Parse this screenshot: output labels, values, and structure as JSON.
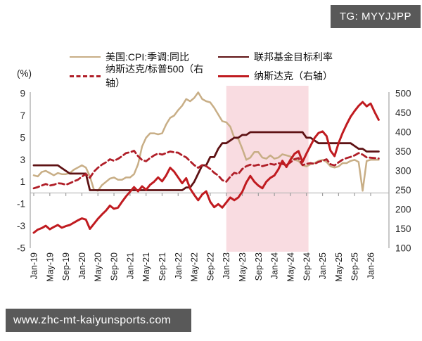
{
  "badge": {
    "text": "TG: MYYJJPP"
  },
  "watermark": {
    "text": "www.zhc-mt-kaiyunsports.com"
  },
  "chart_data": {
    "type": "line",
    "title": "",
    "left_axis": {
      "label": "(%)",
      "ticks": [
        9,
        7,
        5,
        3,
        1,
        -1,
        -3,
        -5
      ],
      "range": [
        -5,
        9
      ]
    },
    "right_axis": {
      "ticks": [
        500,
        450,
        400,
        350,
        300,
        250,
        200,
        150,
        100
      ],
      "range": [
        100,
        500
      ]
    },
    "x_tick_labels": [
      "Jan-19",
      "May-19",
      "Sep-19",
      "Jan-20",
      "May-20",
      "Sep-20",
      "Jan-21",
      "May-21",
      "Sep-21",
      "Jan-22",
      "May-22",
      "Sep-22",
      "Jan-23",
      "May-23",
      "Sep-23",
      "Jan-24",
      "May-24",
      "Sep-24",
      "Jan-25",
      "May-25",
      "Sep-25",
      "Jan-26"
    ],
    "months_per_tick": 4,
    "zero_line_value": 0,
    "grid": "off",
    "legend_position": "top",
    "shaded_region": {
      "label": "Jan-23 to Oct-24",
      "start_index": 48,
      "end_index": 68.5,
      "color": "#f9dce1"
    },
    "colors": {
      "cpi": "#c8ae86",
      "fed_funds": "#5e1214",
      "nasdaq_sp500_ratio": "#b01e28",
      "nasdaq": "#c01b20",
      "axis_line": "#b0b0b0",
      "tick_text": "#262626"
    },
    "series": [
      {
        "name": "美国:CPI:季调:同比",
        "axis": "left",
        "style": "solid",
        "color": "#c8ae86",
        "width": 2.5,
        "values": [
          1.6,
          1.5,
          1.9,
          2.0,
          1.8,
          1.6,
          1.8,
          1.7,
          1.7,
          1.8,
          2.1,
          2.3,
          2.5,
          2.3,
          1.5,
          0.3,
          0.2,
          0.7,
          1.0,
          1.3,
          1.4,
          1.2,
          1.2,
          1.4,
          1.4,
          1.7,
          2.6,
          4.2,
          5.0,
          5.4,
          5.4,
          5.3,
          5.4,
          6.2,
          6.8,
          7.0,
          7.5,
          7.9,
          8.5,
          8.3,
          8.6,
          9.1,
          8.5,
          8.3,
          8.2,
          7.7,
          7.1,
          6.5,
          6.4,
          6.0,
          5.0,
          4.9,
          4.0,
          3.0,
          3.2,
          3.7,
          3.7,
          3.2,
          3.1,
          3.4,
          3.1,
          3.2,
          3.5,
          3.4,
          3.3,
          3.0,
          2.9,
          2.5,
          2.4,
          2.6,
          2.7,
          2.9,
          3.0,
          2.8,
          2.4,
          2.3,
          2.4,
          2.7,
          2.7,
          2.9,
          3.0,
          2.8,
          0.2,
          2.9,
          3.0,
          3.0,
          3.0
        ]
      },
      {
        "name": "联邦基金目标利率",
        "axis": "left",
        "style": "solid",
        "color": "#5e1214",
        "width": 2.8,
        "values": [
          2.5,
          2.5,
          2.5,
          2.5,
          2.5,
          2.5,
          2.5,
          2.25,
          2.0,
          1.75,
          1.75,
          1.75,
          1.75,
          1.75,
          0.25,
          0.25,
          0.25,
          0.25,
          0.25,
          0.25,
          0.25,
          0.25,
          0.25,
          0.25,
          0.25,
          0.25,
          0.25,
          0.25,
          0.25,
          0.25,
          0.25,
          0.25,
          0.25,
          0.25,
          0.25,
          0.25,
          0.25,
          0.25,
          0.5,
          0.5,
          1.0,
          1.75,
          2.5,
          2.5,
          3.25,
          3.25,
          4.0,
          4.5,
          4.5,
          4.75,
          5.0,
          5.0,
          5.25,
          5.25,
          5.5,
          5.5,
          5.5,
          5.5,
          5.5,
          5.5,
          5.5,
          5.5,
          5.5,
          5.5,
          5.5,
          5.5,
          5.5,
          5.5,
          5.0,
          5.0,
          4.75,
          4.5,
          4.5,
          4.5,
          4.5,
          4.5,
          4.5,
          4.5,
          4.5,
          4.5,
          4.25,
          4.0,
          4.0,
          3.75,
          3.75,
          3.75,
          3.75
        ]
      },
      {
        "name": "纳斯达克/标普500（右轴）",
        "axis": "right",
        "style": "dashed",
        "color": "#b01e28",
        "width": 2.8,
        "values": [
          255,
          258,
          262,
          266,
          262,
          264,
          268,
          267,
          264,
          268,
          273,
          277,
          285,
          292,
          282,
          298,
          308,
          316,
          322,
          330,
          326,
          331,
          338,
          346,
          348,
          352,
          338,
          328,
          325,
          333,
          340,
          345,
          342,
          346,
          350,
          348,
          347,
          340,
          335,
          325,
          315,
          308,
          315,
          312,
          305,
          295,
          288,
          276,
          272,
          285,
          295,
          292,
          305,
          312,
          316,
          313,
          316,
          312,
          315,
          318,
          316,
          320,
          318,
          315,
          322,
          330,
          333,
          315,
          318,
          320,
          318,
          323,
          326,
          330,
          317,
          314,
          322,
          329,
          333,
          336,
          340,
          346,
          342,
          335,
          334,
          333,
          332
        ]
      },
      {
        "name": "纳斯达克（右轴）",
        "axis": "right",
        "style": "solid",
        "color": "#c01b20",
        "width": 3,
        "values": [
          140,
          148,
          152,
          158,
          149,
          155,
          160,
          153,
          157,
          160,
          166,
          172,
          177,
          174,
          150,
          163,
          176,
          187,
          197,
          210,
          202,
          205,
          220,
          234,
          246,
          258,
          247,
          260,
          251,
          264,
          272,
          283,
          273,
          288,
          308,
          298,
          283,
          268,
          281,
          254,
          238,
          224,
          239,
          247,
          220,
          206,
          214,
          205,
          218,
          231,
          224,
          231,
          246,
          270,
          287,
          272,
          262,
          255,
          272,
          282,
          288,
          304,
          326,
          310,
          329,
          344,
          351,
          323,
          345,
          365,
          385,
          398,
          402,
          390,
          352,
          338,
          372,
          398,
          420,
          440,
          455,
          468,
          478,
          467,
          474,
          452,
          432
        ]
      }
    ]
  }
}
